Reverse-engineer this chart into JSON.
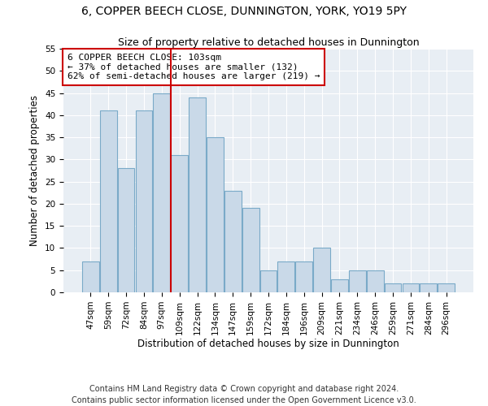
{
  "title": "6, COPPER BEECH CLOSE, DUNNINGTON, YORK, YO19 5PY",
  "subtitle": "Size of property relative to detached houses in Dunnington",
  "xlabel": "Distribution of detached houses by size in Dunnington",
  "ylabel": "Number of detached properties",
  "categories": [
    "47sqm",
    "59sqm",
    "72sqm",
    "84sqm",
    "97sqm",
    "109sqm",
    "122sqm",
    "134sqm",
    "147sqm",
    "159sqm",
    "172sqm",
    "184sqm",
    "196sqm",
    "209sqm",
    "221sqm",
    "234sqm",
    "246sqm",
    "259sqm",
    "271sqm",
    "284sqm",
    "296sqm"
  ],
  "values": [
    7,
    41,
    28,
    41,
    45,
    31,
    44,
    35,
    23,
    19,
    5,
    7,
    7,
    10,
    3,
    5,
    5,
    2,
    2,
    2,
    2
  ],
  "bar_color": "#c9d9e8",
  "bar_edge_color": "#7aaac8",
  "vline_x_index": 4,
  "vline_color": "#cc0000",
  "annotation_text": "6 COPPER BEECH CLOSE: 103sqm\n← 37% of detached houses are smaller (132)\n62% of semi-detached houses are larger (219) →",
  "annotation_box_color": "#ffffff",
  "annotation_box_edge": "#cc0000",
  "ylim": [
    0,
    55
  ],
  "yticks": [
    0,
    5,
    10,
    15,
    20,
    25,
    30,
    35,
    40,
    45,
    50,
    55
  ],
  "footer": "Contains HM Land Registry data © Crown copyright and database right 2024.\nContains public sector information licensed under the Open Government Licence v3.0.",
  "bg_color": "#ffffff",
  "plot_bg_color": "#e8eef4",
  "title_fontsize": 10,
  "subtitle_fontsize": 9,
  "xlabel_fontsize": 8.5,
  "ylabel_fontsize": 8.5,
  "tick_fontsize": 7.5,
  "footer_fontsize": 7,
  "annot_fontsize": 8
}
